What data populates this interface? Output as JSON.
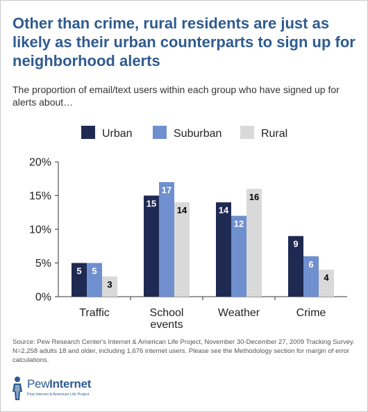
{
  "title": "Other than crime, rural residents are just as likely as their urban counterparts to sign up for neighborhood alerts",
  "subtitle": "The proportion of email/text users within each group who have signed up for alerts about…",
  "source": "Source: Pew Research Center's Internet & American Life Project, November 30-December 27, 2009 Tracking Survey. N=2,258 adults 18 and older, including 1,676 internet users. Please see the Methodology section for margin of error calculations.",
  "logo": {
    "name_light": "Pew",
    "name_bold": "Internet",
    "tagline": "Pew Internet & American Life Project",
    "icon": "person-figure-icon"
  },
  "chart_data": {
    "type": "bar",
    "categories": [
      "Traffic",
      "School events",
      "Weather",
      "Crime"
    ],
    "category_lines": [
      [
        "Traffic"
      ],
      [
        "School",
        "events"
      ],
      [
        "Weather"
      ],
      [
        "Crime"
      ]
    ],
    "series": [
      {
        "name": "Urban",
        "color": "#1f2a52",
        "label_color": "#ffffff",
        "values": [
          5,
          15,
          14,
          9
        ]
      },
      {
        "name": "Suburban",
        "color": "#6f8fcf",
        "label_color": "#ffffff",
        "values": [
          5,
          17,
          12,
          6
        ]
      },
      {
        "name": "Rural",
        "color": "#d9d9d9",
        "label_color": "#000000",
        "values": [
          3,
          14,
          16,
          4
        ]
      }
    ],
    "ylim": [
      0,
      20
    ],
    "yticks": [
      0,
      5,
      10,
      15,
      20
    ],
    "ytick_labels": [
      "0%",
      "5%",
      "10%",
      "15%",
      "20%"
    ],
    "legend_position": "top",
    "grid": false,
    "xlabel": "",
    "ylabel": ""
  }
}
